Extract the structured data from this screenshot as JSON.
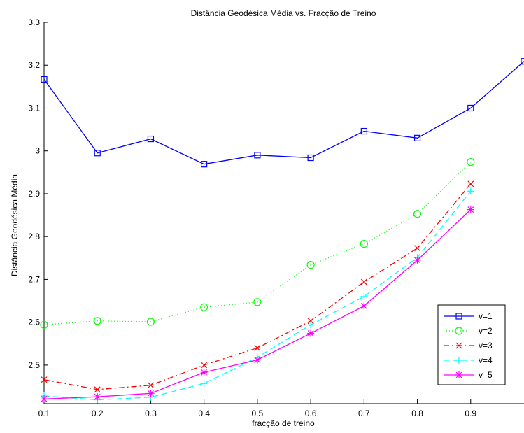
{
  "chart_data": {
    "type": "line",
    "title": "Distância Geodésica Média vs. Fracção de Treino",
    "xlabel": "fracção de treino",
    "ylabel": "Distância Geodésica Média",
    "xlim": [
      0.1,
      1.0
    ],
    "ylim": [
      2.41,
      3.3
    ],
    "x_ticks": [
      0.1,
      0.2,
      0.3,
      0.4,
      0.5,
      0.6,
      0.7,
      0.8,
      0.9
    ],
    "x_tick_labels": [
      "0.1",
      "0.2",
      "0.3",
      "0.4",
      "0.5",
      "0.6",
      "0.7",
      "0.8",
      "0.9"
    ],
    "y_ticks": [
      2.5,
      2.6,
      2.7,
      2.8,
      2.9,
      3.0,
      3.1,
      3.2,
      3.3
    ],
    "y_tick_labels": [
      "2.5",
      "2.6",
      "2.7",
      "2.8",
      "2.9",
      "3",
      "3.1",
      "3.2",
      "3.3"
    ],
    "grid": false,
    "legend_position": "bottom-right",
    "series": [
      {
        "name": "v=1",
        "color": "#0000ff",
        "dash": "solid",
        "marker": "square",
        "x": [
          0.1,
          0.2,
          0.3,
          0.4,
          0.5,
          0.6,
          0.7,
          0.8,
          0.9,
          1.0
        ],
        "y": [
          3.167,
          2.995,
          3.028,
          2.969,
          2.99,
          2.984,
          3.046,
          3.03,
          3.1,
          3.209
        ]
      },
      {
        "name": "v=2",
        "color": "#00ff00",
        "dash": "dotted",
        "marker": "circle",
        "x": [
          0.1,
          0.2,
          0.3,
          0.4,
          0.5,
          0.6,
          0.7,
          0.8,
          0.9
        ],
        "y": [
          2.594,
          2.603,
          2.601,
          2.635,
          2.647,
          2.734,
          2.783,
          2.853,
          2.974
        ]
      },
      {
        "name": "v=3",
        "color": "#ff0000",
        "dash": "dashdot",
        "marker": "x",
        "x": [
          0.1,
          0.2,
          0.3,
          0.4,
          0.5,
          0.6,
          0.7,
          0.8,
          0.9
        ],
        "y": [
          2.466,
          2.443,
          2.453,
          2.5,
          2.54,
          2.603,
          2.694,
          2.773,
          2.923
        ]
      },
      {
        "name": "v=4",
        "color": "#00ffff",
        "dash": "dashed",
        "marker": "plus",
        "x": [
          0.1,
          0.2,
          0.3,
          0.4,
          0.5,
          0.6,
          0.7,
          0.8,
          0.9
        ],
        "y": [
          2.428,
          2.419,
          2.425,
          2.457,
          2.518,
          2.594,
          2.66,
          2.751,
          2.906
        ]
      },
      {
        "name": "v=5",
        "color": "#ff00ff",
        "dash": "solid",
        "marker": "asterisk",
        "x": [
          0.1,
          0.2,
          0.3,
          0.4,
          0.5,
          0.6,
          0.7,
          0.8,
          0.9
        ],
        "y": [
          2.421,
          2.426,
          2.434,
          2.483,
          2.512,
          2.574,
          2.638,
          2.745,
          2.863
        ]
      }
    ]
  }
}
